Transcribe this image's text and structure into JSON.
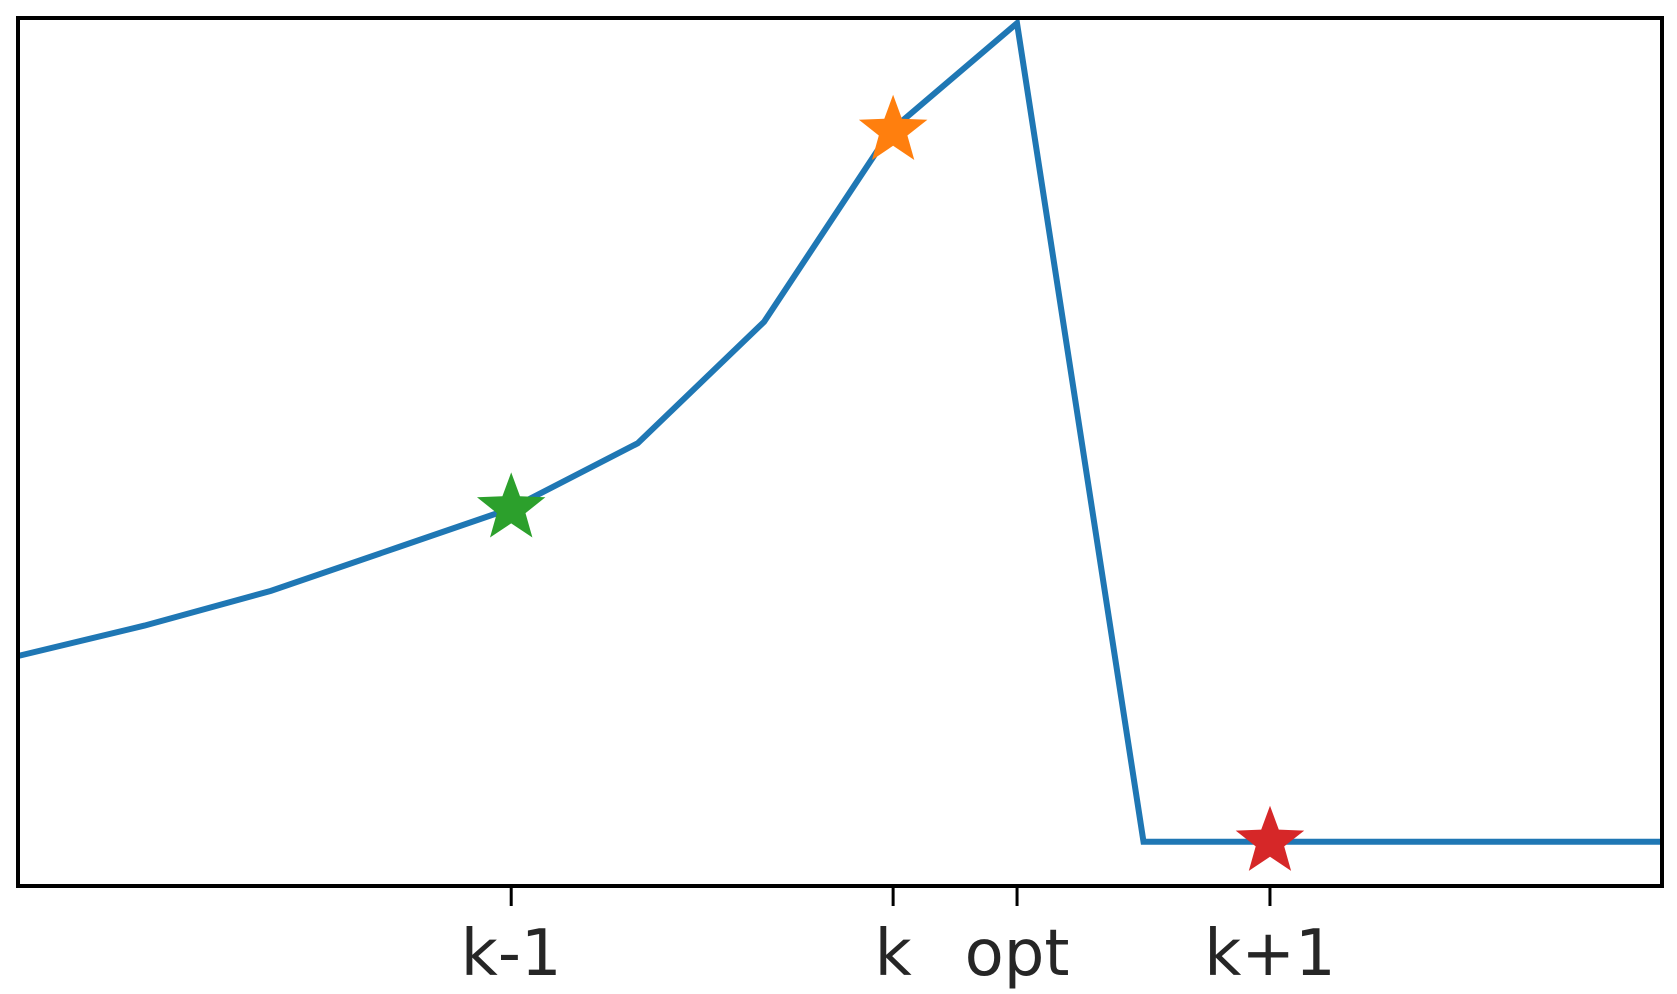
{
  "chart_data": {
    "type": "line",
    "title": "",
    "xlabel": "",
    "ylabel": "",
    "xlim": [
      0,
      13
    ],
    "ylim": [
      0,
      1
    ],
    "grid": false,
    "xticks": [
      {
        "x": 3.9,
        "label": "k-1"
      },
      {
        "x": 6.92,
        "label": "k"
      },
      {
        "x": 7.9,
        "label": "opt"
      },
      {
        "x": 9.9,
        "label": "k+1"
      }
    ],
    "series": [
      {
        "color": "#1f77b4",
        "x": [
          0,
          1,
          2,
          3,
          3.9,
          4.9,
          5.9,
          6.9,
          7.9,
          8.9,
          9.9,
          11,
          12,
          13
        ],
        "y": [
          0.265,
          0.3,
          0.34,
          0.39,
          0.435,
          0.51,
          0.65,
          0.87,
          0.994,
          0.051,
          0.051,
          0.051,
          0.051,
          0.051
        ]
      }
    ],
    "markers": [
      {
        "x": 3.9,
        "y": 0.435,
        "shape": "star",
        "color": "#2ca02c"
      },
      {
        "x": 6.92,
        "y": 0.87,
        "shape": "star",
        "color": "#ff7f0e"
      },
      {
        "x": 9.9,
        "y": 0.051,
        "shape": "star",
        "color": "#d62728"
      }
    ]
  }
}
